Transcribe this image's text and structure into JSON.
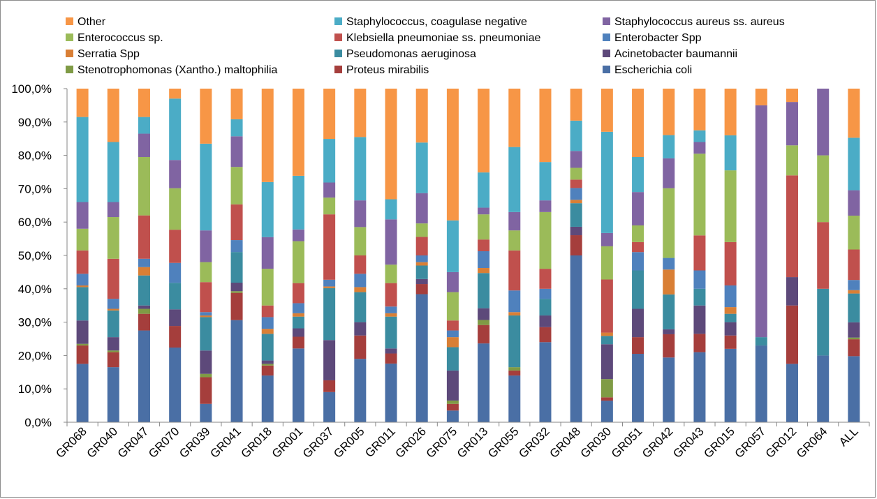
{
  "chart_data": {
    "type": "bar",
    "stacked": true,
    "percent": true,
    "title": "",
    "xlabel": "",
    "ylabel": "",
    "ylim": [
      0,
      100
    ],
    "yticks": [
      "0,0%",
      "10,0%",
      "20,0%",
      "30,0%",
      "40,0%",
      "50,0%",
      "60,0%",
      "70,0%",
      "80,0%",
      "90,0%",
      "100,0%"
    ],
    "grid": false,
    "legend_position": "top",
    "categories": [
      "GR068",
      "GR040",
      "GR047",
      "GR070",
      "GR039",
      "GR041",
      "GR018",
      "GR001",
      "GR037",
      "GR005",
      "GR011",
      "GR026",
      "GR075",
      "GR013",
      "GR055",
      "GR032",
      "GR048",
      "GR030",
      "GR051",
      "GR042",
      "GR043",
      "GR015",
      "GR057",
      "GR012",
      "GR064",
      "ALL"
    ],
    "series": [
      {
        "name": "Escherichia coli",
        "color": "#4A6FA5",
        "values": [
          17.5,
          16.5,
          27.5,
          22.5,
          5.5,
          30,
          14,
          22,
          9,
          19,
          17.5,
          38,
          3.5,
          23.5,
          14,
          24,
          49.5,
          6.5,
          20.5,
          19.5,
          21,
          22,
          23,
          17.5,
          20,
          19.5
        ]
      },
      {
        "name": "Proteus mirabilis",
        "color": "#A53E3C",
        "values": [
          5.5,
          4.5,
          5,
          6.5,
          8,
          8,
          3,
          3.5,
          3.5,
          7,
          3,
          3,
          2,
          5.5,
          1.5,
          4.5,
          6,
          1,
          5,
          7,
          5.5,
          4,
          0,
          17.5,
          0,
          5
        ]
      },
      {
        "name": "Stenotrophomonas (Xantho.) maltophilia",
        "color": "#7F9B45",
        "values": [
          0.5,
          0.5,
          1.5,
          0,
          1,
          0.5,
          0.5,
          0,
          0,
          0,
          0,
          0,
          1,
          1.5,
          1,
          0,
          0,
          5.5,
          0,
          0,
          0,
          0,
          0,
          0,
          0,
          0.5
        ]
      },
      {
        "name": "Acinetobacter baumannii",
        "color": "#5D497A",
        "values": [
          7,
          4,
          1,
          5,
          7,
          2.5,
          1,
          2.5,
          12,
          4,
          1.5,
          1.5,
          9,
          3.5,
          0,
          3.5,
          2.5,
          10.5,
          8.5,
          1.5,
          8.5,
          4,
          0,
          8.5,
          0,
          4.5
        ]
      },
      {
        "name": "Pseudomonas aeruginosa",
        "color": "#3B8CA0",
        "values": [
          10,
          8,
          9,
          8,
          10,
          9,
          8,
          3.5,
          15.5,
          9,
          9.5,
          4,
          7,
          10.5,
          15.5,
          5,
          7,
          2.5,
          11.5,
          10.5,
          5,
          2.5,
          2.5,
          0,
          20,
          8.5
        ]
      },
      {
        "name": "Serratia Spp",
        "color": "#D97F35",
        "values": [
          0.5,
          0.5,
          2.5,
          0,
          0.5,
          0,
          1.5,
          1,
          0.5,
          1.5,
          1,
          1,
          3,
          1.5,
          1,
          0,
          1,
          1,
          0,
          7.5,
          0,
          2,
          0,
          0,
          0,
          1
        ]
      },
      {
        "name": "Enterobacter Spp",
        "color": "#4F81BD",
        "values": [
          3.5,
          3,
          2.5,
          6,
          1,
          3.5,
          3.5,
          3,
          2,
          4,
          2,
          2,
          2,
          5,
          6.5,
          3,
          3.5,
          0,
          5.5,
          3.5,
          5.5,
          6.5,
          0,
          0,
          0,
          3
        ]
      },
      {
        "name": "Klebsiella pneumoniae ss. pneumoniae",
        "color": "#C0504D",
        "values": [
          7,
          12,
          13,
          10,
          9,
          10.5,
          3.5,
          6,
          19.5,
          5.5,
          7,
          5.5,
          3,
          3.5,
          12,
          6,
          2.5,
          16,
          3,
          0,
          10.5,
          13,
          0,
          30.5,
          20,
          9
        ]
      },
      {
        "name": "Enterococcus sp.",
        "color": "#9BBB59",
        "values": [
          6.5,
          12.5,
          17.5,
          12.5,
          6,
          11,
          11,
          12.5,
          5,
          8.5,
          5.5,
          4,
          8.5,
          7.5,
          6,
          17,
          3.5,
          10,
          5,
          21,
          24.5,
          21.5,
          0,
          9,
          20,
          10
        ]
      },
      {
        "name": "Staphylococcus aureus ss. aureus",
        "color": "#8064A2",
        "values": [
          8,
          4.5,
          7,
          8.5,
          9.5,
          9,
          9.5,
          3.5,
          4.5,
          8,
          13.5,
          9,
          6,
          2,
          5.5,
          3.5,
          5,
          4,
          10,
          9,
          3.5,
          0,
          69.5,
          13,
          20,
          7.5
        ]
      },
      {
        "name": "Staphylococcus, coagulase negative",
        "color": "#4BACC6",
        "values": [
          25.5,
          18,
          5,
          18.5,
          26,
          5,
          16.5,
          16,
          13,
          19,
          6,
          15,
          15.5,
          10.5,
          19.5,
          11.5,
          9,
          30.5,
          10.5,
          7,
          3.5,
          10.5,
          0,
          0,
          0,
          15.5
        ]
      },
      {
        "name": "Other",
        "color": "#F79646",
        "values": [
          8.5,
          16,
          8.5,
          3,
          16.5,
          9,
          28,
          26,
          15,
          14.5,
          33,
          16,
          39.5,
          25,
          17.5,
          22,
          9.5,
          13,
          20.5,
          14,
          12.5,
          14,
          5,
          4,
          0,
          14.5
        ]
      }
    ],
    "legend_rows": [
      [
        "Other",
        "Staphylococcus, coagulase negative",
        "Staphylococcus aureus ss. aureus"
      ],
      [
        "Enterococcus sp.",
        "Klebsiella pneumoniae ss. pneumoniae",
        "Enterobacter Spp"
      ],
      [
        "Serratia Spp",
        "Pseudomonas aeruginosa",
        "Acinetobacter baumannii"
      ],
      [
        "Stenotrophomonas (Xantho.) maltophilia",
        "Proteus mirabilis",
        "Escherichia coli"
      ]
    ]
  }
}
